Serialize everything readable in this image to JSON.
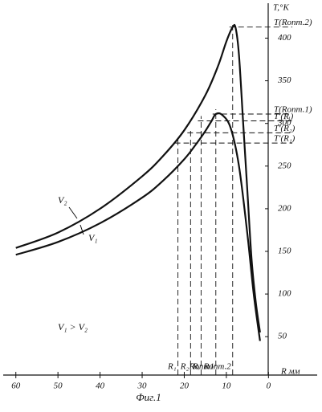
{
  "chart_data": {
    "type": "line",
    "caption": "Фиг.1",
    "x_label": "R мм",
    "y_label": "T,°K",
    "note": "V₁ > V₂",
    "xlim": [
      63,
      -11
    ],
    "ylim": [
      5,
      440
    ],
    "xticks": [
      60,
      50,
      40,
      30,
      20,
      10,
      0
    ],
    "yticks": [
      50,
      100,
      150,
      200,
      250,
      300,
      350,
      400
    ],
    "series": [
      {
        "name": "V₁",
        "color": "#111111",
        "x": [
          60,
          50,
          40,
          30,
          25,
          20,
          17,
          15,
          13.5,
          12.5,
          11,
          9,
          7,
          5,
          3.5,
          2
        ],
        "values": [
          146,
          161,
          183,
          213,
          233,
          258,
          277,
          291,
          303,
          311,
          310,
          295,
          250,
          170,
          100,
          45
        ]
      },
      {
        "name": "V₂",
        "color": "#111111",
        "x": [
          60,
          50,
          40,
          30,
          25,
          20,
          15,
          12,
          10,
          8.5,
          7.8,
          7,
          6,
          5,
          4,
          3,
          2
        ],
        "values": [
          154,
          172,
          200,
          238,
          262,
          292,
          333,
          367,
          396,
          413,
          412,
          380,
          300,
          220,
          140,
          90,
          55
        ]
      }
    ],
    "markers": [
      {
        "x_label": "R₁",
        "x": 21.5,
        "y_label": "T'(R₁)",
        "y": 277
      },
      {
        "x_label": "R₂",
        "x": 18.5,
        "y_label": "T'(R₂)",
        "y": 289
      },
      {
        "x_label": "Rᵢ",
        "x": 16,
        "y_label": "T'(Rᵢ)",
        "y": 303
      },
      {
        "x_label": "Rопт1",
        "x": 12.5,
        "y_label": "T(Rопт.1)",
        "y": 311
      },
      {
        "x_label": "Rопт.2",
        "x": 8.5,
        "y_label": "T(Rопт.2)",
        "y": 413
      }
    ]
  }
}
